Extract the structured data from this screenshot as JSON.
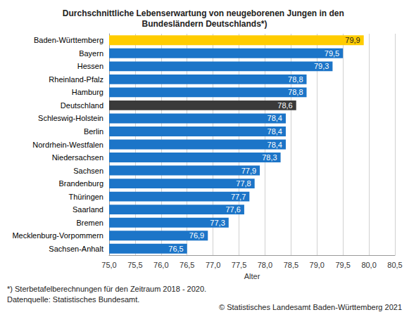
{
  "chart_data": {
    "type": "bar",
    "title": "Durchschnittliche Lebenserwartung von neugeborenen Jungen in den Bundesländern Deutschlands*)",
    "x_label": "Alter",
    "orientation": "horizontal",
    "categories": [
      "Baden-Württemberg",
      "Bayern",
      "Hessen",
      "Rheinland-Pfalz",
      "Hamburg",
      "Deutschland",
      "Schleswig-Holstein",
      "Berlin",
      "Nordrhein-Westfalen",
      "Niedersachsen",
      "Sachsen",
      "Brandenburg",
      "Thüringen",
      "Saarland",
      "Bremen",
      "Mecklenburg-Vorpommern",
      "Sachsen-Anhalt"
    ],
    "values": [
      79.9,
      79.5,
      79.3,
      78.8,
      78.8,
      78.6,
      78.4,
      78.4,
      78.4,
      78.3,
      77.9,
      77.8,
      77.7,
      77.6,
      77.3,
      76.9,
      76.5
    ],
    "value_labels": [
      "79,9",
      "79,5",
      "79,3",
      "78,8",
      "78,8",
      "78,6",
      "78,4",
      "78,4",
      "78,4",
      "78,3",
      "77,9",
      "77,8",
      "77,7",
      "77,6",
      "77,3",
      "76,9",
      "76,5"
    ],
    "colors": [
      "#ffcc00",
      "#1c75c8",
      "#1c75c8",
      "#1c75c8",
      "#1c75c8",
      "#3a3a3a",
      "#1c75c8",
      "#1c75c8",
      "#1c75c8",
      "#1c75c8",
      "#1c75c8",
      "#1c75c8",
      "#1c75c8",
      "#1c75c8",
      "#1c75c8",
      "#1c75c8",
      "#1c75c8"
    ],
    "data_labels": true,
    "grid": true,
    "xlim": [
      75.0,
      80.5
    ],
    "xticks": [
      {
        "value": 75.0,
        "label": "75,0"
      },
      {
        "value": 75.5,
        "label": "75,5"
      },
      {
        "value": 76.0,
        "label": "76,0"
      },
      {
        "value": 76.5,
        "label": "76,5"
      },
      {
        "value": 77.0,
        "label": "77,0"
      },
      {
        "value": 77.5,
        "label": "77,5"
      },
      {
        "value": 78.0,
        "label": "78,0"
      },
      {
        "value": 78.5,
        "label": "78,5"
      },
      {
        "value": 79.0,
        "label": "79,0"
      },
      {
        "value": 79.5,
        "label": "79,5"
      },
      {
        "value": 80.0,
        "label": "80,0"
      },
      {
        "value": 80.5,
        "label": "80,5"
      }
    ],
    "annotations": [
      "*) Sterbetafelberechnungen für den Zeitraum 2018 - 2020.",
      "Datenquelle: Statistisches Bundesamt.",
      "© Statistisches Landesamt Baden-Württemberg 2021"
    ]
  }
}
